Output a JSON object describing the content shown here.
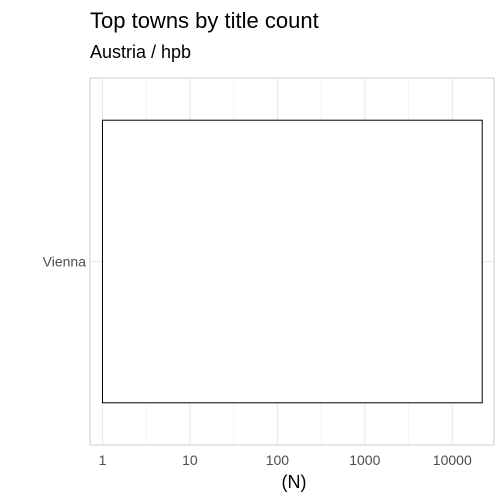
{
  "chart_data": {
    "type": "bar",
    "orientation": "horizontal",
    "title": "Top towns by title count",
    "subtitle": "Austria / hpb",
    "xlabel": "(N)",
    "ylabel": "",
    "x_scale": "log10",
    "categories": [
      "Vienna"
    ],
    "values": [
      22000
    ],
    "xlim": [
      0.72,
      30000
    ],
    "x_ticks": [
      1,
      10,
      100,
      1000,
      10000
    ],
    "x_tick_labels": [
      "1",
      "10",
      "100",
      "1000",
      "10000"
    ],
    "grid": true,
    "bar_fill": "#ffffff",
    "bar_stroke": "#000000"
  },
  "colors": {
    "background": "#ffffff",
    "panel_border": "#cccccc",
    "grid_major": "#e8e8e8",
    "grid_minor": "#f3f3f3",
    "title": "#000000",
    "tick_label": "#4d4d4d"
  }
}
